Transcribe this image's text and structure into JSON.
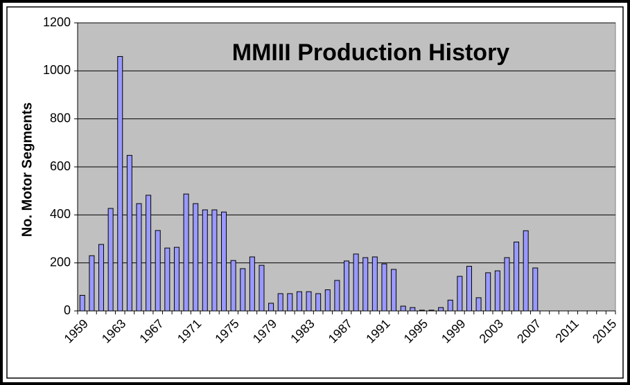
{
  "chart_data": {
    "type": "bar",
    "title": "MMIII Production History",
    "y_label": "No. Motor  Segments",
    "categories": [
      "1959",
      null,
      null,
      null,
      "1963",
      null,
      null,
      null,
      "1967",
      null,
      null,
      null,
      "1971",
      null,
      null,
      null,
      "1975",
      null,
      null,
      null,
      "1979",
      null,
      null,
      null,
      "1983",
      null,
      null,
      null,
      "1987",
      null,
      null,
      null,
      "1991",
      null,
      null,
      null,
      "1995",
      null,
      null,
      null,
      "1999",
      null,
      null,
      null,
      "2003",
      null,
      null,
      null,
      "2007",
      null,
      null,
      null,
      "2011",
      null,
      null,
      null,
      "2015"
    ],
    "values": [
      65,
      230,
      277,
      427,
      1060,
      648,
      447,
      482,
      335,
      262,
      265,
      487,
      447,
      421,
      421,
      412,
      210,
      176,
      225,
      190,
      32,
      72,
      72,
      80,
      80,
      72,
      88,
      127,
      208,
      237,
      222,
      225,
      196,
      173,
      20,
      14,
      3,
      3,
      14,
      45,
      144,
      186,
      55,
      159,
      167,
      222,
      287,
      334,
      179,
      null,
      null,
      null,
      null,
      null,
      null,
      null,
      null
    ],
    "color": "#9999ff",
    "ylim": [
      0,
      1200
    ],
    "yticks": [
      0,
      200,
      400,
      600,
      800,
      1000,
      1200
    ],
    "grid": true
  }
}
